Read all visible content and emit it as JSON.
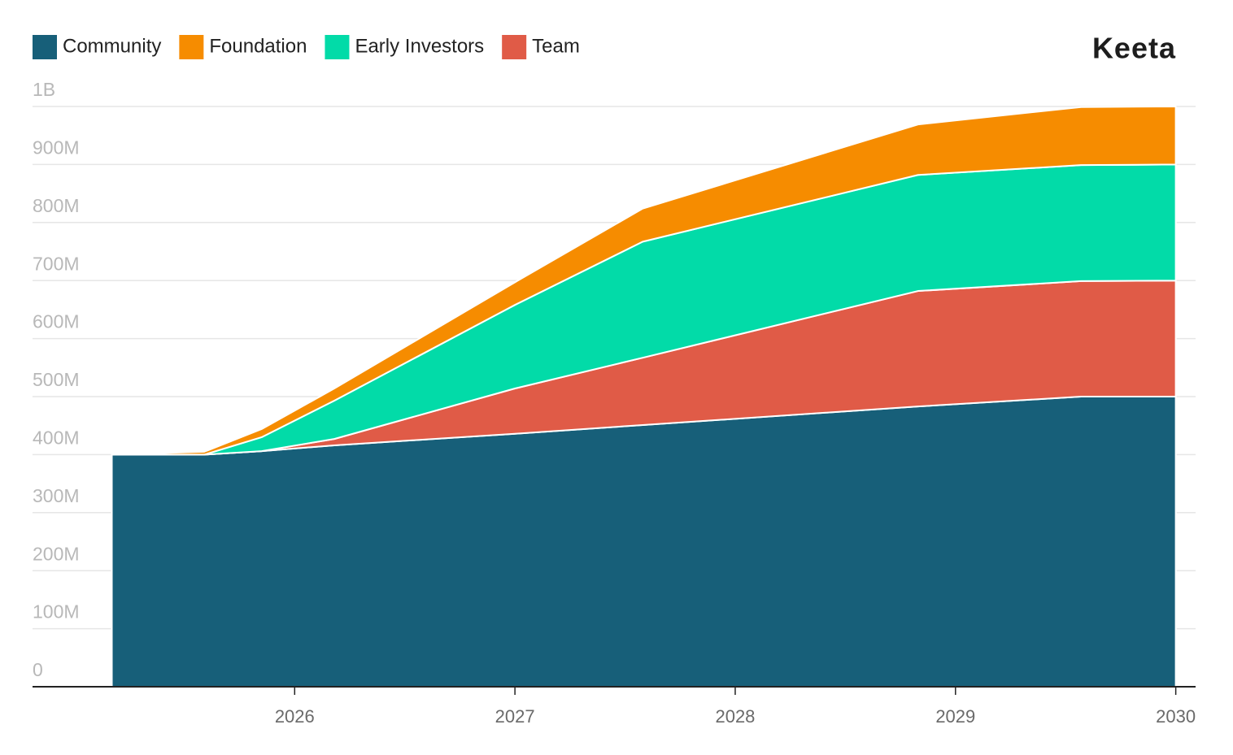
{
  "chart_data": {
    "type": "stacked_area",
    "logo": "Keeta",
    "x": [
      2025.17,
      2025.59,
      2025.85,
      2026.18,
      2027.0,
      2027.58,
      2028.83,
      2029.57,
      2030.0
    ],
    "series": [
      {
        "name": "Community",
        "color": "#175f79",
        "values": [
          400,
          400,
          406,
          416,
          436,
          451,
          483,
          500,
          500
        ]
      },
      {
        "name": "Foundation",
        "color": "#f68c00",
        "values": [
          0,
          5,
          14,
          21,
          39,
          57,
          87,
          100,
          100
        ]
      },
      {
        "name": "Early Investors",
        "color": "#02dba8",
        "values": [
          0,
          0,
          24,
          66,
          144,
          200,
          200,
          200,
          200
        ]
      },
      {
        "name": "Team",
        "color": "#e05b47",
        "values": [
          0,
          0,
          0,
          11,
          78,
          116,
          199,
          199,
          200
        ]
      }
    ],
    "xlim": [
      2024.81,
      2030.09
    ],
    "xticks": [
      2026,
      2027,
      2028,
      2029,
      2030
    ],
    "ylim": [
      0,
      1000
    ],
    "yticks": [
      0,
      {
        "value": 100,
        "label": "100M"
      },
      {
        "value": 200,
        "label": "200M"
      },
      {
        "value": 300,
        "label": "300M"
      },
      {
        "value": 400,
        "label": "400M"
      },
      {
        "value": 500,
        "label": "500M"
      },
      {
        "value": 600,
        "label": "600M"
      },
      {
        "value": 700,
        "label": "700M"
      },
      {
        "value": 800,
        "label": "800M"
      },
      {
        "value": 900,
        "label": "900M"
      },
      {
        "value": 1000,
        "label": "1B"
      }
    ],
    "grid": true
  }
}
